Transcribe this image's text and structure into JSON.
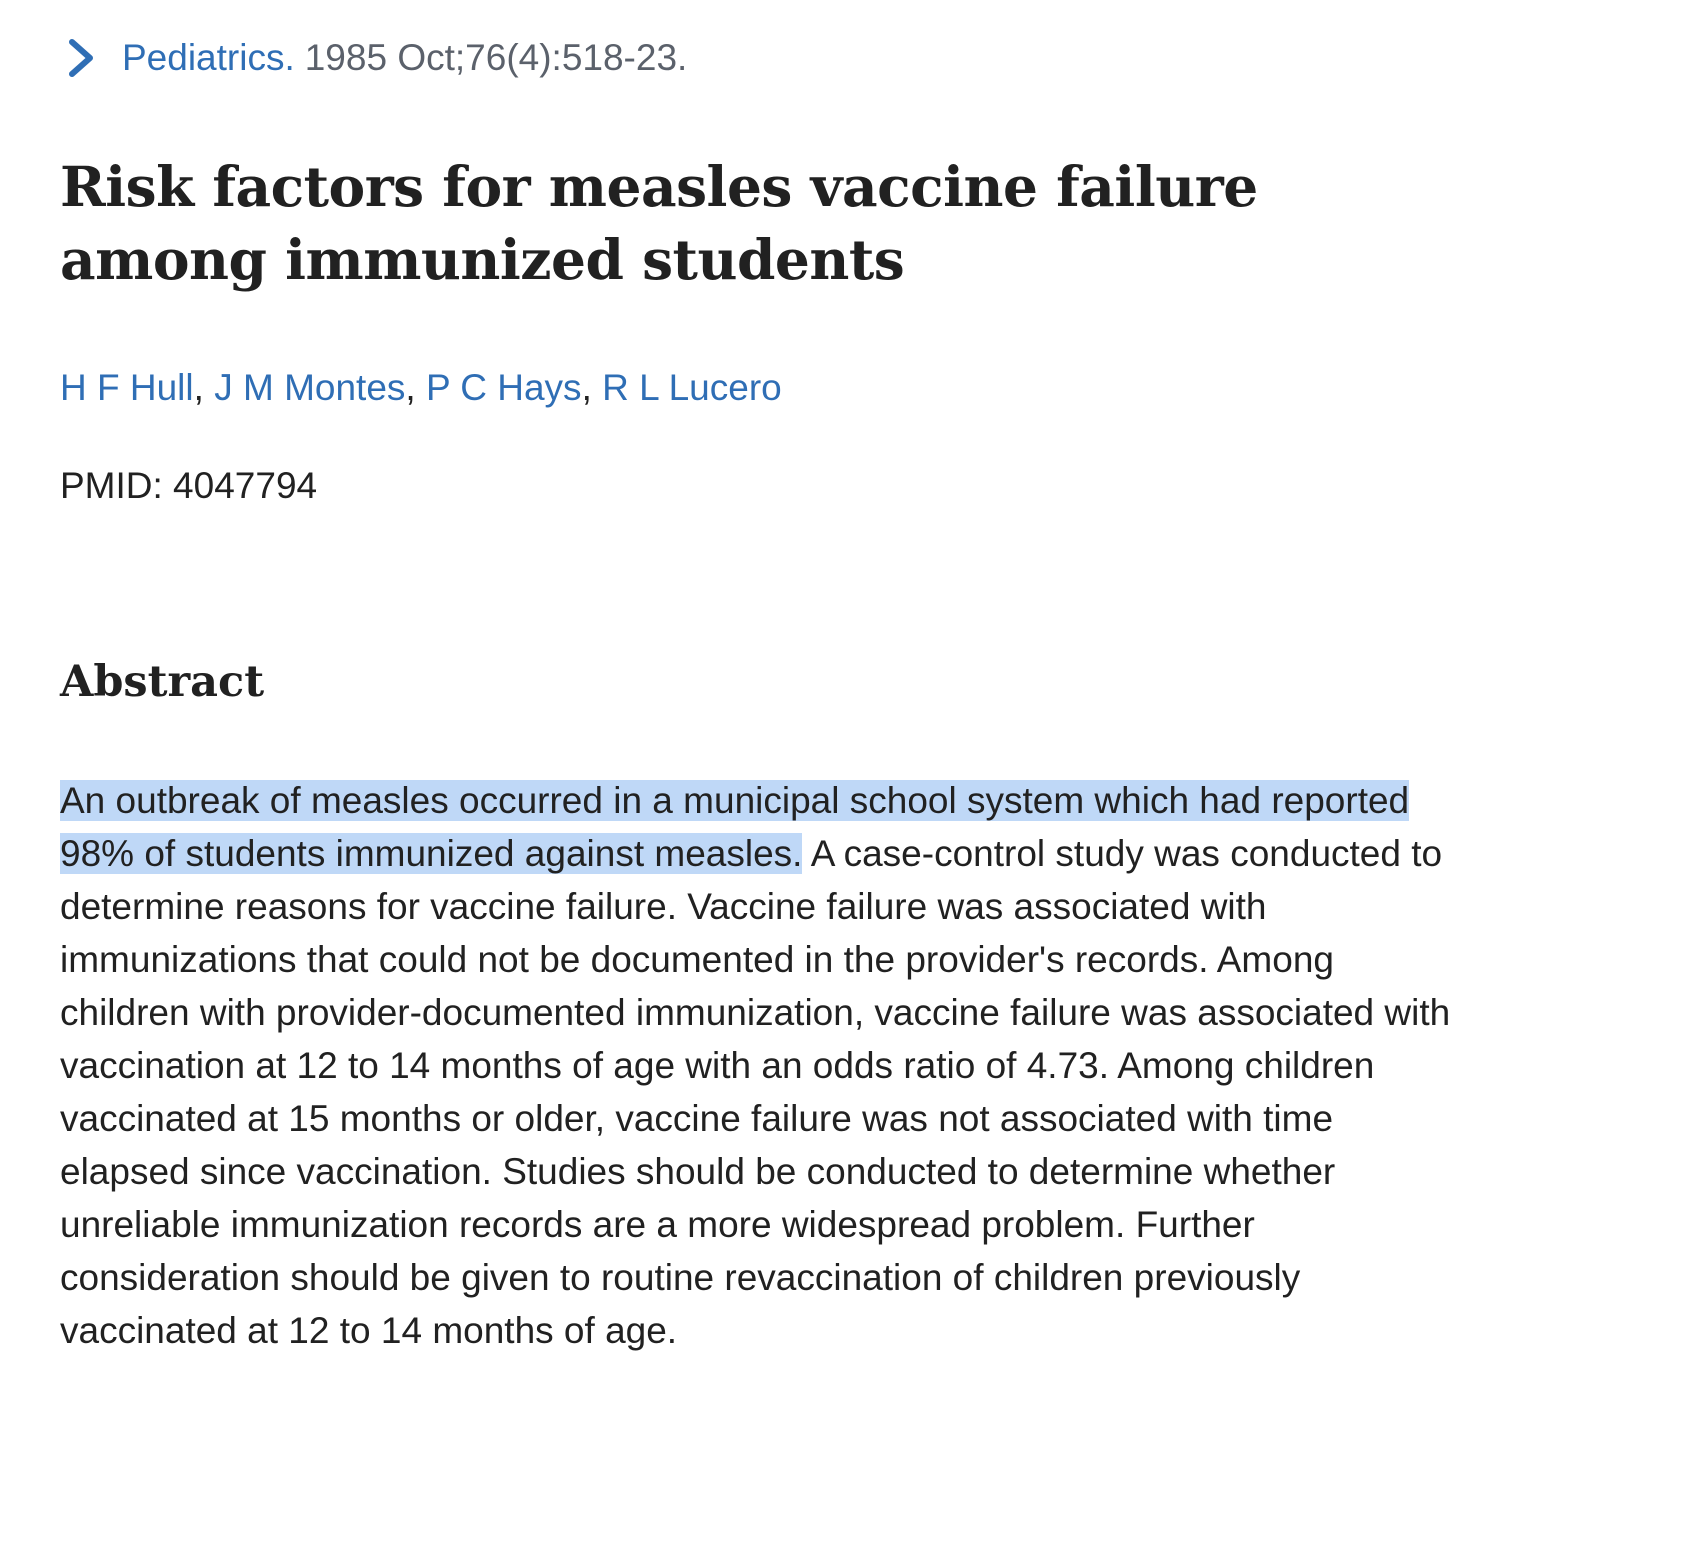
{
  "citation": {
    "journal": "Pediatrics.",
    "details": "1985 Oct;76(4):518-23."
  },
  "title": "Risk factors for measles vaccine failure among immunized students",
  "authors": [
    "H F Hull",
    "J M Montes",
    "P C Hays",
    "R L Lucero"
  ],
  "separator": ", ",
  "pmid": "PMID: 4047794",
  "abstract": {
    "heading": "Abstract",
    "highlighted_text": "An outbreak of measles occurred in a municipal school system which had reported 98% of students immunized against measles.",
    "remaining_text": " A case-control study was conducted to determine reasons for vaccine failure. Vaccine failure was associated with immunizations that could not be documented in the provider's records. Among children with provider-documented immunization, vaccine failure was associated with vaccination at 12 to 14 months of age with an odds ratio of 4.73. Among children vaccinated at 15 months or older, vaccine failure was not associated with time elapsed since vaccination. Studies should be conducted to determine whether unreliable immunization records are a more widespread problem. Further consideration should be given to routine revaccination of children previously vaccinated at 12 to 14 months of age."
  },
  "colors": {
    "link": "#2f6eb5",
    "text": "#212121",
    "muted": "#5b616b",
    "selection": "#bfd8f7"
  },
  "icons": {
    "citation_toggle": "chevron-right-icon"
  }
}
